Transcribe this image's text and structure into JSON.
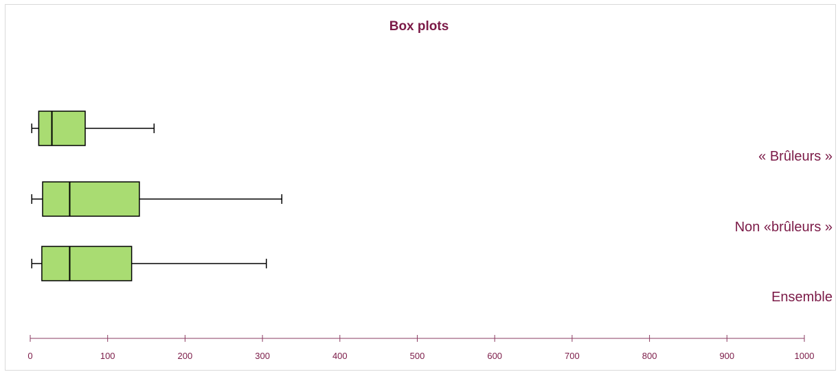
{
  "chart_data": {
    "type": "boxplot",
    "title": "Box plots",
    "orientation": "horizontal",
    "xlim": [
      0,
      1000
    ],
    "xticks": [
      0,
      100,
      200,
      300,
      400,
      500,
      600,
      700,
      800,
      900,
      1000
    ],
    "xtick_labels": [
      "0",
      "100",
      "200",
      "300",
      "400",
      "500",
      "600",
      "700",
      "800",
      "900",
      "1000"
    ],
    "grid": false,
    "legend": "none",
    "categories": [
      "« Brûleurs »",
      "Non «brûleurs »",
      "Ensemble"
    ],
    "boxes": [
      {
        "category": "« Brûleurs »",
        "min": 2,
        "q1": 11,
        "median": 28,
        "q3": 71,
        "max": 160
      },
      {
        "category": "Non «brûleurs »",
        "min": 2,
        "q1": 16,
        "median": 51,
        "q3": 141,
        "max": 325
      },
      {
        "category": "Ensemble",
        "min": 2,
        "q1": 15,
        "median": 51,
        "q3": 131,
        "max": 305
      }
    ]
  },
  "colors": {
    "title": "#7b1a47",
    "labels": "#7b1a47",
    "axis": "#8a3a60",
    "box_fill": "#a9dc72",
    "box_stroke": "#000000"
  }
}
